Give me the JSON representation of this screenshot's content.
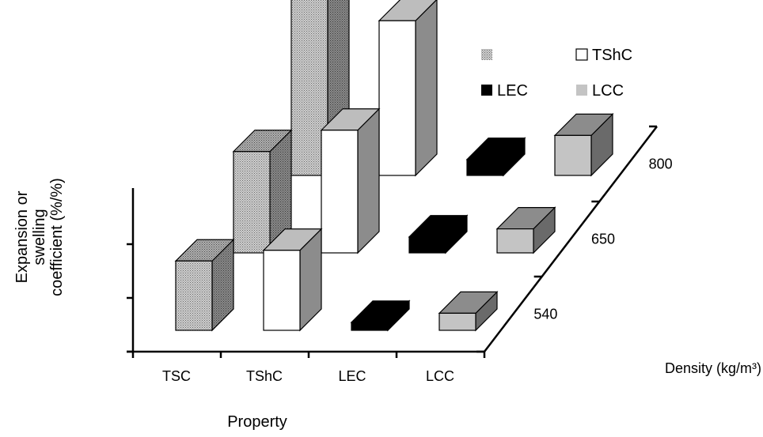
{
  "chart_data": {
    "type": "bar",
    "subtype": "3d-grouped-bar",
    "title": "",
    "xlabel": "Property",
    "ylabel": "Expansion or swelling coefficient (%/%)",
    "zlabel": "Density (kg/m³)",
    "categories": [
      "TSC",
      "TShC",
      "LEC",
      "LCC"
    ],
    "depth_categories": [
      "540",
      "650",
      "800"
    ],
    "y_tick_count": 3,
    "y_tick_labels_shown": false,
    "grid": false,
    "legend_position": "top-right",
    "legend": [
      {
        "label": "",
        "category": "TSC"
      },
      {
        "label": "TShC",
        "category": "TShC"
      },
      {
        "label": "LEC",
        "category": "LEC"
      },
      {
        "label": "LCC",
        "category": "LCC"
      }
    ],
    "colors": {
      "TSC": {
        "front": "#c8c8c8",
        "pattern": "#7a7a7a",
        "side": "#6e6e6e",
        "top": "#9a9a9a"
      },
      "TShC": {
        "front": "#ffffff",
        "side": "#8c8c8c",
        "top": "#bdbdbd"
      },
      "LEC": {
        "front": "#000000",
        "side": "#000000",
        "top": "#000000"
      },
      "LCC": {
        "front": "#c4c4c4",
        "side": "#6a6a6a",
        "top": "#8c8c8c"
      }
    },
    "series": [
      {
        "density": "540",
        "values": [
          1.3,
          1.5,
          0.15,
          0.32
        ]
      },
      {
        "density": "650",
        "values": [
          1.9,
          2.3,
          0.3,
          0.45
        ]
      },
      {
        "density": "800",
        "values": [
          3.4,
          2.9,
          0.3,
          0.75
        ]
      }
    ],
    "ylim": [
      0,
      4
    ]
  }
}
